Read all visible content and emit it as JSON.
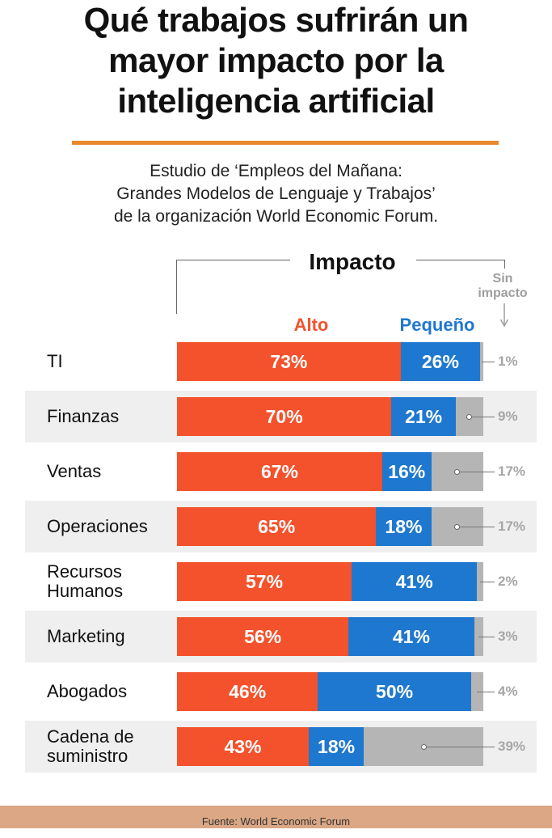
{
  "title": {
    "line1": "Qué trabajos sufrirán un",
    "line2": "mayor impacto por la",
    "line3": "inteligencia artificial"
  },
  "subtitle": {
    "line1": "Estudio de ‘Empleos del Mañana:",
    "line2": "Grandes Modelos de Lenguaje y Trabajos’",
    "line3": "de la organización World Economic Forum."
  },
  "header": {
    "impacto": "Impacto",
    "sin_impacto_line1": "Sin",
    "sin_impacto_line2": "impacto"
  },
  "legend": {
    "alto": "Alto",
    "pequeno": "Pequeño"
  },
  "footer": {
    "source": "Fuente: World Economic Forum"
  },
  "colors": {
    "alto": "#f4522c",
    "pequeno": "#1f78cf",
    "sin_impacto": "#b5b5b5",
    "row_band": "#efefef",
    "accent_rule": "#e8892a",
    "footer_bg": "#dba785",
    "legend_pequeno_text": "#1f78cf",
    "legend_alto_text": "#f4522c"
  },
  "chart_data": {
    "type": "bar",
    "orientation": "horizontal",
    "stacked": true,
    "title": "Qué trabajos sufrirán un mayor impacto por la inteligencia artificial",
    "categories": [
      [
        "TI"
      ],
      [
        "Finanzas"
      ],
      [
        "Ventas"
      ],
      [
        "Operaciones"
      ],
      [
        "Recursos",
        "Humanos"
      ],
      [
        "Marketing"
      ],
      [
        "Abogados"
      ],
      [
        "Cadena de",
        "suministro"
      ]
    ],
    "series": [
      {
        "name": "Alto",
        "values": [
          73,
          70,
          67,
          65,
          57,
          56,
          46,
          43
        ]
      },
      {
        "name": "Pequeño",
        "values": [
          26,
          21,
          16,
          18,
          41,
          41,
          50,
          18
        ]
      },
      {
        "name": "Sin impacto",
        "values": [
          1,
          9,
          17,
          17,
          2,
          3,
          4,
          39
        ]
      }
    ],
    "unit": "%",
    "xlim": [
      0,
      100
    ],
    "legend": "top"
  }
}
